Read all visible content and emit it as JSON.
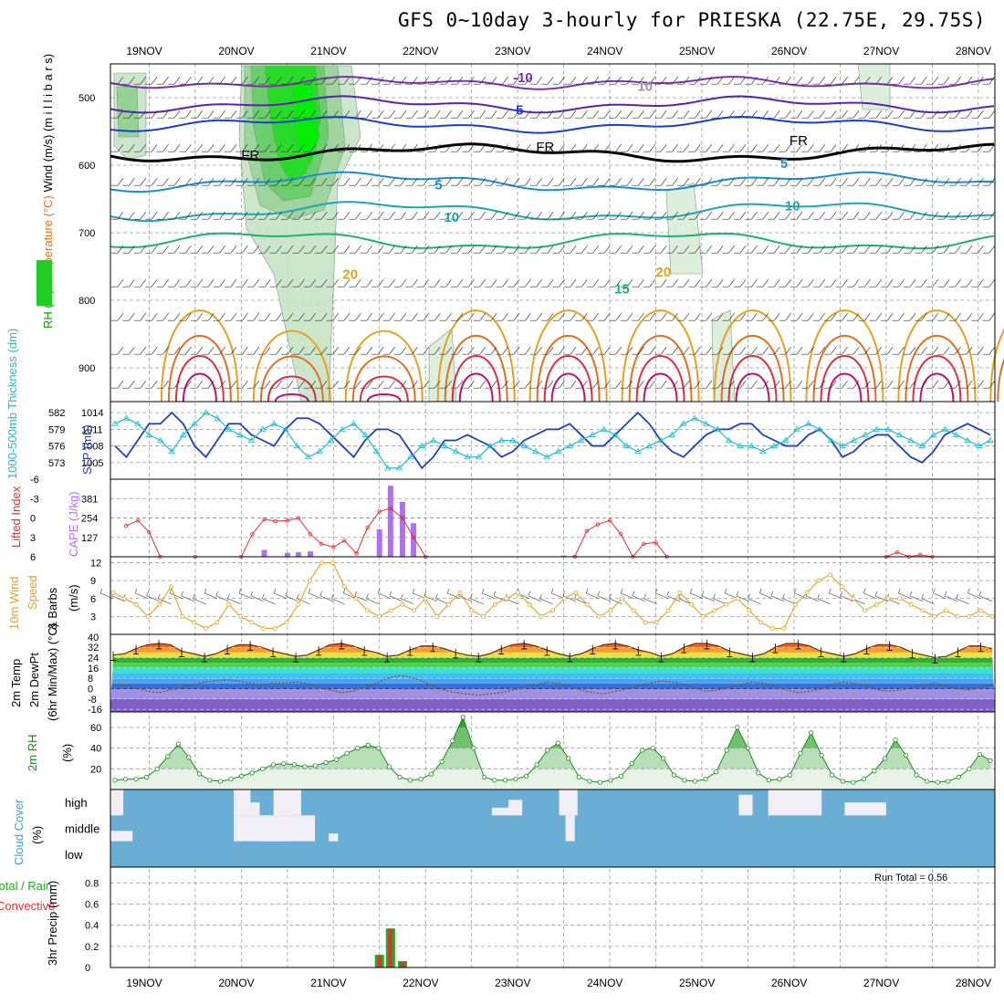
{
  "title": "GFS 0~10day 3-hourly for PRIESKA (22.75E, 29.75S)",
  "x_axis": {
    "dates": [
      "19NOV",
      "20NOV",
      "21NOV",
      "22NOV",
      "23NOV",
      "24NOV",
      "25NOV",
      "26NOV",
      "27NOV",
      "28NOV"
    ],
    "start_offset_days": -0.42,
    "end_offset_days": 9.18
  },
  "chart_data": [
    {
      "id": "upper-air",
      "type": "contour",
      "ylabel_parts": [
        "RH (%)",
        "Temperature (°C)",
        "Wind (m/s)",
        "(m i l l i b a r s)"
      ],
      "y_ticks": [
        500,
        600,
        700,
        800,
        900
      ],
      "ylim": [
        450,
        950
      ],
      "isotherm_labels": [
        {
          "text": "-10",
          "day": 3.95,
          "p": 477,
          "color": "#7d2fb3"
        },
        {
          "text": "5",
          "day": 3.98,
          "p": 525,
          "color": "#1a3dd1"
        },
        {
          "text": "FR",
          "day": 4.2,
          "p": 580,
          "color": "#000000"
        },
        {
          "text": "FR",
          "day": 6.95,
          "p": 570,
          "color": "#000000"
        },
        {
          "text": "FR",
          "day": 1.0,
          "p": 592,
          "color": "#000000"
        },
        {
          "text": "5",
          "day": 3.1,
          "p": 636,
          "color": "#1a8cd1"
        },
        {
          "text": "5",
          "day": 6.85,
          "p": 604,
          "color": "#1a8cd1"
        },
        {
          "text": "10",
          "day": 3.2,
          "p": 684,
          "color": "#1aa6b0"
        },
        {
          "text": "10",
          "day": 6.9,
          "p": 667,
          "color": "#1aa6b0"
        },
        {
          "text": "15",
          "day": 5.05,
          "p": 790,
          "color": "#1ab07a"
        },
        {
          "text": "20",
          "day": 2.1,
          "p": 768,
          "color": "#e6a020"
        },
        {
          "text": "20",
          "day": 5.5,
          "p": 765,
          "color": "#e6a020"
        },
        {
          "text": "10",
          "day": 5.3,
          "p": 490,
          "color": "#999999"
        }
      ]
    },
    {
      "id": "slp-thickness",
      "type": "line",
      "ylabel": "SLP (mb)",
      "ylabel2": "1000-500mb Thickness (dm)",
      "y_ticks_left": [
        573,
        576,
        579,
        582
      ],
      "y_ticks_right": [
        1005,
        1008,
        1011,
        1014
      ],
      "ylim": [
        1002,
        1016
      ],
      "series": [
        {
          "name": "SLP (mb)",
          "color": "#1f3fbf",
          "values": [
            1008,
            1006,
            1009,
            1012,
            1012,
            1014,
            1012,
            1008,
            1006,
            1009,
            1012,
            1012,
            1010,
            1009,
            1008,
            1011,
            1013,
            1013,
            1012,
            1010,
            1008,
            1006,
            1009,
            1011,
            1011,
            1010,
            1007,
            1004,
            1006,
            1009,
            1009,
            1010,
            1009,
            1008,
            1006,
            1007,
            1009,
            1010,
            1011,
            1011,
            1012,
            1010,
            1008,
            1008,
            1010,
            1012,
            1014,
            1012,
            1009,
            1007,
            1006,
            1008,
            1010,
            1011,
            1011,
            1012,
            1012,
            1010,
            1009,
            1008,
            1008,
            1010,
            1011,
            1009,
            1006,
            1007,
            1009,
            1010,
            1010,
            1008,
            1006,
            1005,
            1007,
            1010,
            1011,
            1012,
            1011,
            1010
          ]
        },
        {
          "name": "1000-500mb Thickness (dm)",
          "color": "#28b8c8",
          "values": [
            1012,
            1013,
            1012,
            1010,
            1009,
            1007,
            1010,
            1012,
            1014,
            1013,
            1011,
            1010,
            1009,
            1011,
            1012,
            1011,
            1008,
            1006,
            1007,
            1009,
            1011,
            1012,
            1010,
            1007,
            1004,
            1004,
            1006,
            1008,
            1009,
            1008,
            1007,
            1006,
            1006,
            1008,
            1009,
            1009,
            1008,
            1007,
            1006,
            1007,
            1008,
            1009,
            1010,
            1011,
            1010,
            1008,
            1007,
            1008,
            1009,
            1010,
            1012,
            1013,
            1012,
            1011,
            1009,
            1008,
            1008,
            1007,
            1008,
            1009,
            1011,
            1012,
            1011,
            1009,
            1008,
            1009,
            1010,
            1011,
            1011,
            1010,
            1009,
            1008,
            1010,
            1011,
            1010,
            1009,
            1008,
            1009
          ]
        }
      ]
    },
    {
      "id": "cape-li",
      "type": "bar+line",
      "ylabel": "Lifted Index",
      "ylabel2": "CAPE (J/kg)",
      "y_ticks_left": [
        -6,
        -3,
        0,
        3,
        6
      ],
      "y_ticks_right": [
        127,
        254,
        381
      ],
      "li_range": [
        6,
        -6
      ],
      "li_points": [
        [
          -0.25,
          1.2
        ],
        [
          -0.12,
          0.4
        ],
        [
          0,
          2.2
        ],
        [
          0.12,
          6
        ],
        [
          0.5,
          6
        ],
        [
          1.0,
          6
        ],
        [
          1.12,
          2.5
        ],
        [
          1.25,
          0.2
        ],
        [
          1.37,
          0.5
        ],
        [
          1.5,
          0.4
        ],
        [
          1.62,
          0
        ],
        [
          1.75,
          2.5
        ],
        [
          1.87,
          4
        ],
        [
          2.0,
          4.5
        ],
        [
          2.12,
          3.5
        ],
        [
          2.25,
          5.5
        ],
        [
          2.37,
          1.5
        ],
        [
          2.5,
          -1
        ],
        [
          2.62,
          -1.5
        ],
        [
          2.75,
          0
        ],
        [
          2.87,
          3
        ],
        [
          3.0,
          6
        ],
        [
          4.62,
          6
        ],
        [
          4.75,
          2
        ],
        [
          4.87,
          1.0
        ],
        [
          5.0,
          0.4
        ],
        [
          5.12,
          2.5
        ],
        [
          5.25,
          6
        ],
        [
          5.37,
          4
        ],
        [
          5.5,
          3.8
        ],
        [
          5.62,
          6
        ],
        [
          8.0,
          6
        ],
        [
          8.12,
          5.3
        ],
        [
          8.25,
          6
        ],
        [
          8.37,
          5.7
        ],
        [
          8.5,
          6
        ]
      ],
      "cape_bars": [
        [
          1.25,
          45
        ],
        [
          1.5,
          25
        ],
        [
          1.62,
          30
        ],
        [
          1.75,
          35
        ],
        [
          2.5,
          180
        ],
        [
          2.62,
          465
        ],
        [
          2.75,
          360
        ],
        [
          2.87,
          220
        ],
        [
          4.5,
          8
        ],
        [
          4.62,
          5
        ],
        [
          4.75,
          3
        ]
      ]
    },
    {
      "id": "wind10m",
      "type": "line",
      "ylabel": "10m Wind Speed & Barbs",
      "ylabel2": "(m/s)",
      "y_ticks": [
        3,
        6,
        9,
        12
      ],
      "ylim": [
        0,
        13
      ],
      "values": [
        7,
        6,
        5,
        3,
        5,
        8,
        3,
        2,
        1,
        2,
        5,
        3,
        2,
        1,
        1,
        2,
        5,
        9,
        12,
        12,
        8,
        6,
        4,
        3,
        4,
        5,
        4,
        6,
        3,
        5,
        7,
        4,
        3,
        5,
        6,
        7,
        5,
        3,
        4,
        6,
        7,
        5,
        3,
        4,
        6,
        4,
        2,
        2,
        4,
        7,
        5,
        3,
        4,
        5,
        6,
        4,
        2,
        1,
        1,
        5,
        7,
        9,
        10,
        8,
        6,
        4,
        5,
        6,
        6,
        5,
        4,
        3,
        4,
        3,
        3,
        4,
        3
      ]
    },
    {
      "id": "temp2m",
      "type": "area",
      "ylabel": "2m Temp",
      "ylabel2": "2m DewPt",
      "ylabel3": "(6hr Min/Max) (°C)",
      "y_ticks": [
        -16,
        -8,
        0,
        8,
        16,
        24,
        32,
        40
      ],
      "ylim": [
        -18,
        42
      ],
      "temp": [
        26,
        27,
        31,
        34,
        35,
        34,
        29,
        27,
        25,
        27,
        31,
        34,
        34,
        32,
        29,
        27,
        25,
        26,
        30,
        34,
        35,
        33,
        30,
        28,
        25,
        26,
        30,
        33,
        33,
        31,
        28,
        26,
        25,
        27,
        31,
        34,
        35,
        33,
        30,
        27,
        25,
        27,
        31,
        34,
        35,
        33,
        30,
        28,
        25,
        27,
        32,
        35,
        35,
        33,
        29,
        27,
        25,
        27,
        32,
        35,
        35,
        33,
        29,
        27,
        25,
        27,
        31,
        34,
        34,
        32,
        28,
        26,
        24,
        25,
        29,
        33,
        33,
        31
      ],
      "dewpt": [
        2,
        3,
        1,
        -2,
        -3,
        -1,
        1,
        3,
        5,
        6,
        7,
        6,
        4,
        3,
        4,
        4,
        5,
        4,
        1,
        -1,
        -3,
        -2,
        1,
        4,
        8,
        10,
        9,
        6,
        2,
        -1,
        -3,
        -4,
        -5,
        -4,
        -3,
        -1,
        1,
        3,
        5,
        4,
        2,
        -1,
        -3,
        -4,
        -2,
        0,
        2,
        4,
        6,
        5,
        3,
        0,
        -2,
        -1,
        1,
        3,
        5,
        4,
        2,
        -1,
        -3,
        -2,
        0,
        3,
        5,
        4,
        2,
        -1,
        -2,
        -1,
        1,
        3,
        4,
        2,
        0,
        -1,
        1,
        3
      ]
    },
    {
      "id": "rh2m",
      "type": "area",
      "ylabel": "2m RH",
      "ylabel2": "(%)",
      "y_ticks": [
        20,
        40,
        60
      ],
      "ylim": [
        0,
        75
      ],
      "values": [
        9,
        10,
        10,
        12,
        20,
        32,
        44,
        31,
        15,
        9,
        8,
        10,
        13,
        16,
        20,
        24,
        25,
        24,
        22,
        23,
        26,
        29,
        35,
        40,
        43,
        40,
        22,
        12,
        9,
        10,
        15,
        27,
        47,
        70,
        40,
        12,
        9,
        9,
        10,
        13,
        24,
        38,
        45,
        30,
        12,
        8,
        7,
        9,
        13,
        25,
        38,
        40,
        30,
        14,
        9,
        8,
        10,
        17,
        38,
        60,
        40,
        16,
        9,
        10,
        14,
        35,
        55,
        33,
        14,
        8,
        7,
        10,
        18,
        30,
        48,
        33,
        14,
        8,
        7,
        8,
        12,
        20,
        34,
        28
      ]
    },
    {
      "id": "cloud",
      "type": "heatmap",
      "ylabel": "Cloud Cover",
      "ylabel2": "(%)",
      "levels": [
        "high",
        "middle",
        "low"
      ],
      "background": "#6aaed6",
      "blocks": [
        {
          "level": "high",
          "d0": -0.42,
          "d1": -0.28
        },
        {
          "level": "middle",
          "d0": -0.42,
          "d1": -0.18,
          "frac": 0.4
        },
        {
          "level": "high",
          "d0": 0.92,
          "d1": 1.1
        },
        {
          "level": "high",
          "d0": 1.1,
          "d1": 1.2,
          "frac": 0.5
        },
        {
          "level": "high",
          "d0": 1.35,
          "d1": 1.65
        },
        {
          "level": "middle",
          "d0": 0.92,
          "d1": 1.8
        },
        {
          "level": "middle",
          "d0": 1.2,
          "d1": 1.55,
          "frac": 1.0
        },
        {
          "level": "high",
          "d0": 3.72,
          "d1": 3.9,
          "frac": 0.3
        },
        {
          "level": "high",
          "d0": 3.9,
          "d1": 4.05,
          "frac": 0.6
        },
        {
          "level": "high",
          "d0": 4.45,
          "d1": 4.65
        },
        {
          "level": "middle",
          "d0": 4.52,
          "d1": 4.62
        },
        {
          "level": "high",
          "d0": 6.4,
          "d1": 6.55,
          "frac": 0.8
        },
        {
          "level": "high",
          "d0": 6.72,
          "d1": 7.3
        },
        {
          "level": "high",
          "d0": 7.55,
          "d1": 8.0,
          "frac": 0.5
        },
        {
          "level": "middle",
          "d0": 1.95,
          "d1": 2.05,
          "frac": 0.3
        }
      ]
    },
    {
      "id": "precip",
      "type": "bar",
      "ylabel": "Total / Rain",
      "ylabel_red": "Convective",
      "ylabel2": "3hr Precip (mm)",
      "y_ticks": [
        0,
        0.2,
        0.4,
        0.6,
        0.8
      ],
      "ylim": [
        0,
        0.95
      ],
      "run_total_label": "Run Total =  0.56",
      "bars": [
        [
          2.5,
          0.12,
          0.11
        ],
        [
          2.62,
          0.37,
          0.36
        ],
        [
          2.75,
          0.06,
          0.05
        ]
      ]
    }
  ],
  "colors": {
    "rh_dark": "#22cc22",
    "rh_light": "#c4e6c4",
    "grid": "#999999",
    "cloud_bg": "#6aaed6"
  }
}
